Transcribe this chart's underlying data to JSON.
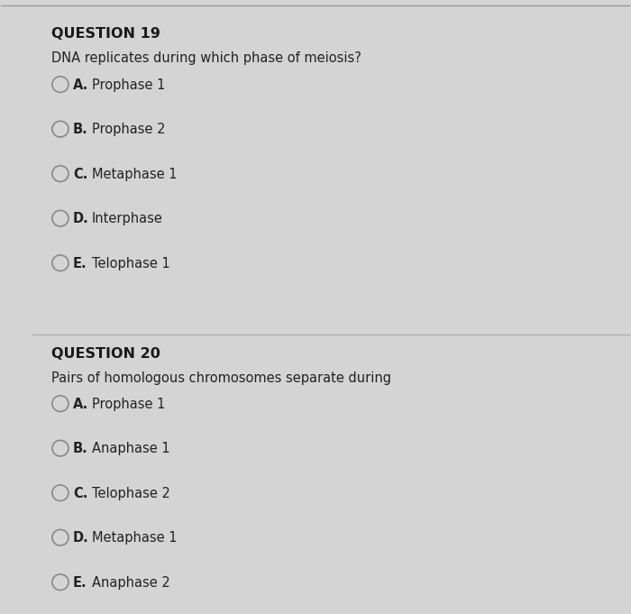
{
  "background_color": "#d4d4d4",
  "content_bg": "#e8e8e8",
  "q19_title": "QUESTION 19",
  "q19_question": "DNA replicates during which phase of meiosis?",
  "q19_options": [
    {
      "letter": "A.",
      "text": "Prophase 1"
    },
    {
      "letter": "B.",
      "text": "Prophase 2"
    },
    {
      "letter": "C.",
      "text": "Metaphase 1"
    },
    {
      "letter": "D.",
      "text": "Interphase"
    },
    {
      "letter": "E.",
      "text": "Telophase 1"
    }
  ],
  "q20_title": "QUESTION 20",
  "q20_question": "Pairs of homologous chromosomes separate during",
  "q20_options": [
    {
      "letter": "A.",
      "text": "Prophase 1"
    },
    {
      "letter": "B.",
      "text": "Anaphase 1"
    },
    {
      "letter": "C.",
      "text": "Telophase 2"
    },
    {
      "letter": "D.",
      "text": "Metaphase 1"
    },
    {
      "letter": "E.",
      "text": "Anaphase 2"
    }
  ],
  "title_fontsize": 11.5,
  "question_fontsize": 10.5,
  "option_fontsize": 10.5,
  "title_color": "#1a1a1a",
  "text_color": "#222222",
  "circle_color": "#888888",
  "line_color": "#aaaaaa"
}
